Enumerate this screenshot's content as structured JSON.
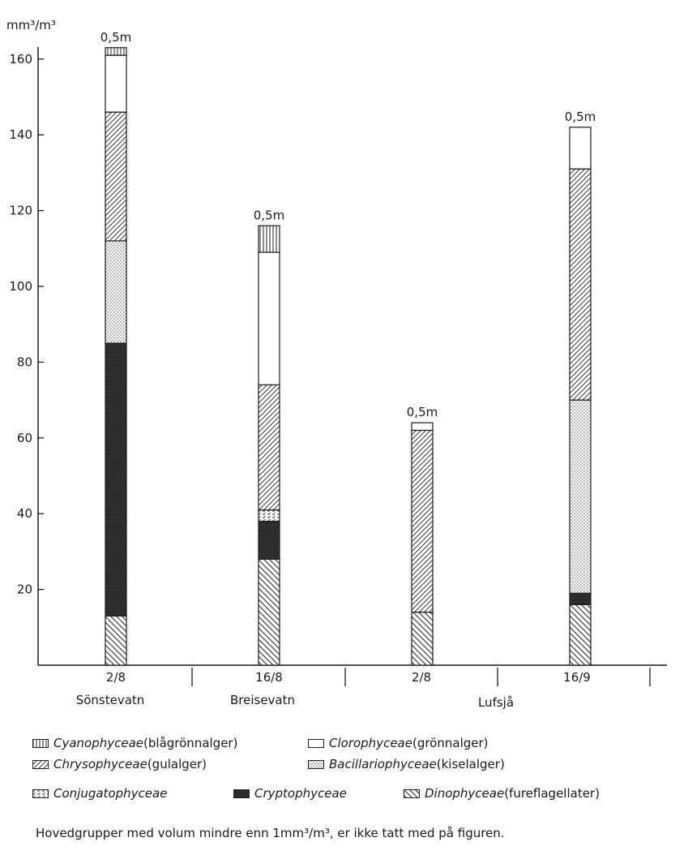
{
  "chart_data": {
    "type": "bar",
    "stacked": true,
    "y_unit": "mm³/m³",
    "ylim": [
      0,
      160
    ],
    "yticks": [
      20,
      40,
      60,
      80,
      100,
      120,
      140,
      160
    ],
    "categories": [
      "2/8",
      "16/8",
      "2/8",
      "16/9"
    ],
    "lake_labels": [
      "Sönstevatn",
      "Breisevatn",
      "Lufsjå"
    ],
    "bar_top_labels": [
      "0,5m",
      "0,5m",
      "0,5m",
      "0,5m"
    ],
    "series": [
      {
        "key": "dino",
        "pattern": "hatch-back",
        "values": [
          13,
          28,
          14,
          16
        ]
      },
      {
        "key": "crypto",
        "pattern": "solid-dark",
        "values": [
          72,
          10,
          0,
          3
        ]
      },
      {
        "key": "conjug",
        "pattern": "dash",
        "values": [
          0,
          3,
          0,
          0
        ]
      },
      {
        "key": "bacil",
        "pattern": "dots",
        "values": [
          27,
          0,
          0,
          51
        ]
      },
      {
        "key": "chryso",
        "pattern": "hatch-fwd",
        "values": [
          34,
          33,
          48,
          61
        ]
      },
      {
        "key": "chloro",
        "pattern": "empty",
        "values": [
          15,
          35,
          2,
          11
        ]
      },
      {
        "key": "cyano",
        "pattern": "vertical",
        "values": [
          2,
          7,
          0,
          0
        ]
      }
    ]
  },
  "legend": {
    "cyano": {
      "name": "Cyanophyceae",
      "desc": " (blågrönnalger)"
    },
    "chloro": {
      "name": "Clorophyceae",
      "desc": " (grönnalger)"
    },
    "chryso": {
      "name": "Chrysophyceae",
      "desc": " (gulalger)"
    },
    "bacil": {
      "name": "Bacillariophyceae",
      "desc": " (kiselalger)"
    },
    "conjug": {
      "name": "Conjugatophyceae",
      "desc": ""
    },
    "crypto": {
      "name": "Cryptophyceae",
      "desc": ""
    },
    "dino": {
      "name": "Dinophyceae",
      "desc": " (fureflagellater)"
    }
  },
  "note": "Hovedgrupper med volum mindre enn 1mm³/m³, er ikke tatt med på figuren."
}
